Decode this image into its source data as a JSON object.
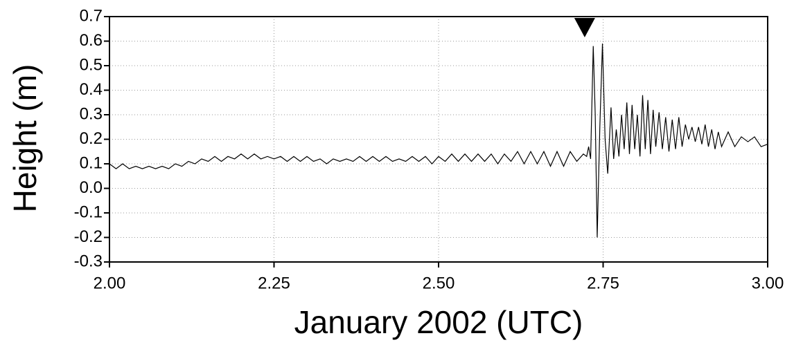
{
  "chart_data": {
    "type": "line",
    "xlabel": "January 2002 (UTC)",
    "ylabel": "Height (m)",
    "xlim": [
      2.0,
      3.0
    ],
    "ylim": [
      -0.3,
      0.7
    ],
    "xticks": [
      {
        "value": 2.0,
        "label": "2.00"
      },
      2.25,
      {
        "value": 2.5,
        "label": "2.50"
      },
      2.75,
      {
        "value": 3.0,
        "label": "3.00"
      }
    ],
    "yticks": [
      -0.3,
      -0.2,
      -0.1,
      {
        "value": 0,
        "label": "0.0"
      },
      0.1,
      0.2,
      0.3,
      0.4,
      0.5,
      0.6,
      0.7
    ],
    "grid": true,
    "annotations": [
      {
        "x": 2.722,
        "shape": "triangle-down"
      }
    ],
    "x": [
      2.0,
      2.01,
      2.02,
      2.03,
      2.04,
      2.05,
      2.06,
      2.07,
      2.08,
      2.09,
      2.1,
      2.11,
      2.12,
      2.13,
      2.14,
      2.15,
      2.16,
      2.17,
      2.18,
      2.19,
      2.2,
      2.21,
      2.22,
      2.23,
      2.24,
      2.25,
      2.26,
      2.27,
      2.28,
      2.29,
      2.3,
      2.31,
      2.32,
      2.33,
      2.34,
      2.35,
      2.36,
      2.37,
      2.38,
      2.39,
      2.4,
      2.41,
      2.42,
      2.43,
      2.44,
      2.45,
      2.46,
      2.47,
      2.48,
      2.49,
      2.5,
      2.51,
      2.52,
      2.53,
      2.54,
      2.55,
      2.56,
      2.57,
      2.58,
      2.59,
      2.6,
      2.61,
      2.62,
      2.63,
      2.64,
      2.65,
      2.66,
      2.67,
      2.68,
      2.69,
      2.7,
      2.71,
      2.72,
      2.725,
      2.728,
      2.731,
      2.735,
      2.738,
      2.741,
      2.745,
      2.749,
      2.753,
      2.757,
      2.762,
      2.766,
      2.77,
      2.774,
      2.778,
      2.782,
      2.786,
      2.79,
      2.794,
      2.798,
      2.802,
      2.806,
      2.81,
      2.814,
      2.818,
      2.822,
      2.826,
      2.83,
      2.835,
      2.84,
      2.845,
      2.85,
      2.855,
      2.86,
      2.865,
      2.87,
      2.875,
      2.88,
      2.885,
      2.89,
      2.895,
      2.9,
      2.905,
      2.91,
      2.915,
      2.92,
      2.925,
      2.93,
      2.94,
      2.95,
      2.96,
      2.97,
      2.98,
      2.99,
      3.0
    ],
    "series": [
      {
        "color": "#000000",
        "values": [
          0.1,
          0.08,
          0.1,
          0.08,
          0.09,
          0.08,
          0.09,
          0.08,
          0.09,
          0.08,
          0.1,
          0.09,
          0.11,
          0.1,
          0.12,
          0.11,
          0.13,
          0.11,
          0.13,
          0.12,
          0.14,
          0.12,
          0.14,
          0.12,
          0.13,
          0.12,
          0.13,
          0.11,
          0.13,
          0.11,
          0.13,
          0.11,
          0.12,
          0.1,
          0.12,
          0.11,
          0.12,
          0.11,
          0.13,
          0.11,
          0.13,
          0.11,
          0.13,
          0.11,
          0.12,
          0.11,
          0.13,
          0.11,
          0.13,
          0.1,
          0.13,
          0.11,
          0.14,
          0.11,
          0.14,
          0.11,
          0.14,
          0.11,
          0.14,
          0.1,
          0.14,
          0.11,
          0.15,
          0.1,
          0.15,
          0.1,
          0.15,
          0.09,
          0.15,
          0.09,
          0.15,
          0.11,
          0.14,
          0.13,
          0.17,
          0.12,
          0.58,
          0.3,
          -0.2,
          0.25,
          0.59,
          0.2,
          0.06,
          0.33,
          0.12,
          0.24,
          0.13,
          0.3,
          0.16,
          0.35,
          0.14,
          0.34,
          0.16,
          0.3,
          0.13,
          0.38,
          0.16,
          0.36,
          0.14,
          0.32,
          0.17,
          0.31,
          0.16,
          0.29,
          0.15,
          0.28,
          0.16,
          0.29,
          0.17,
          0.26,
          0.2,
          0.25,
          0.19,
          0.25,
          0.18,
          0.26,
          0.17,
          0.24,
          0.16,
          0.23,
          0.17,
          0.23,
          0.17,
          0.21,
          0.19,
          0.21,
          0.17,
          0.18
        ]
      }
    ]
  }
}
